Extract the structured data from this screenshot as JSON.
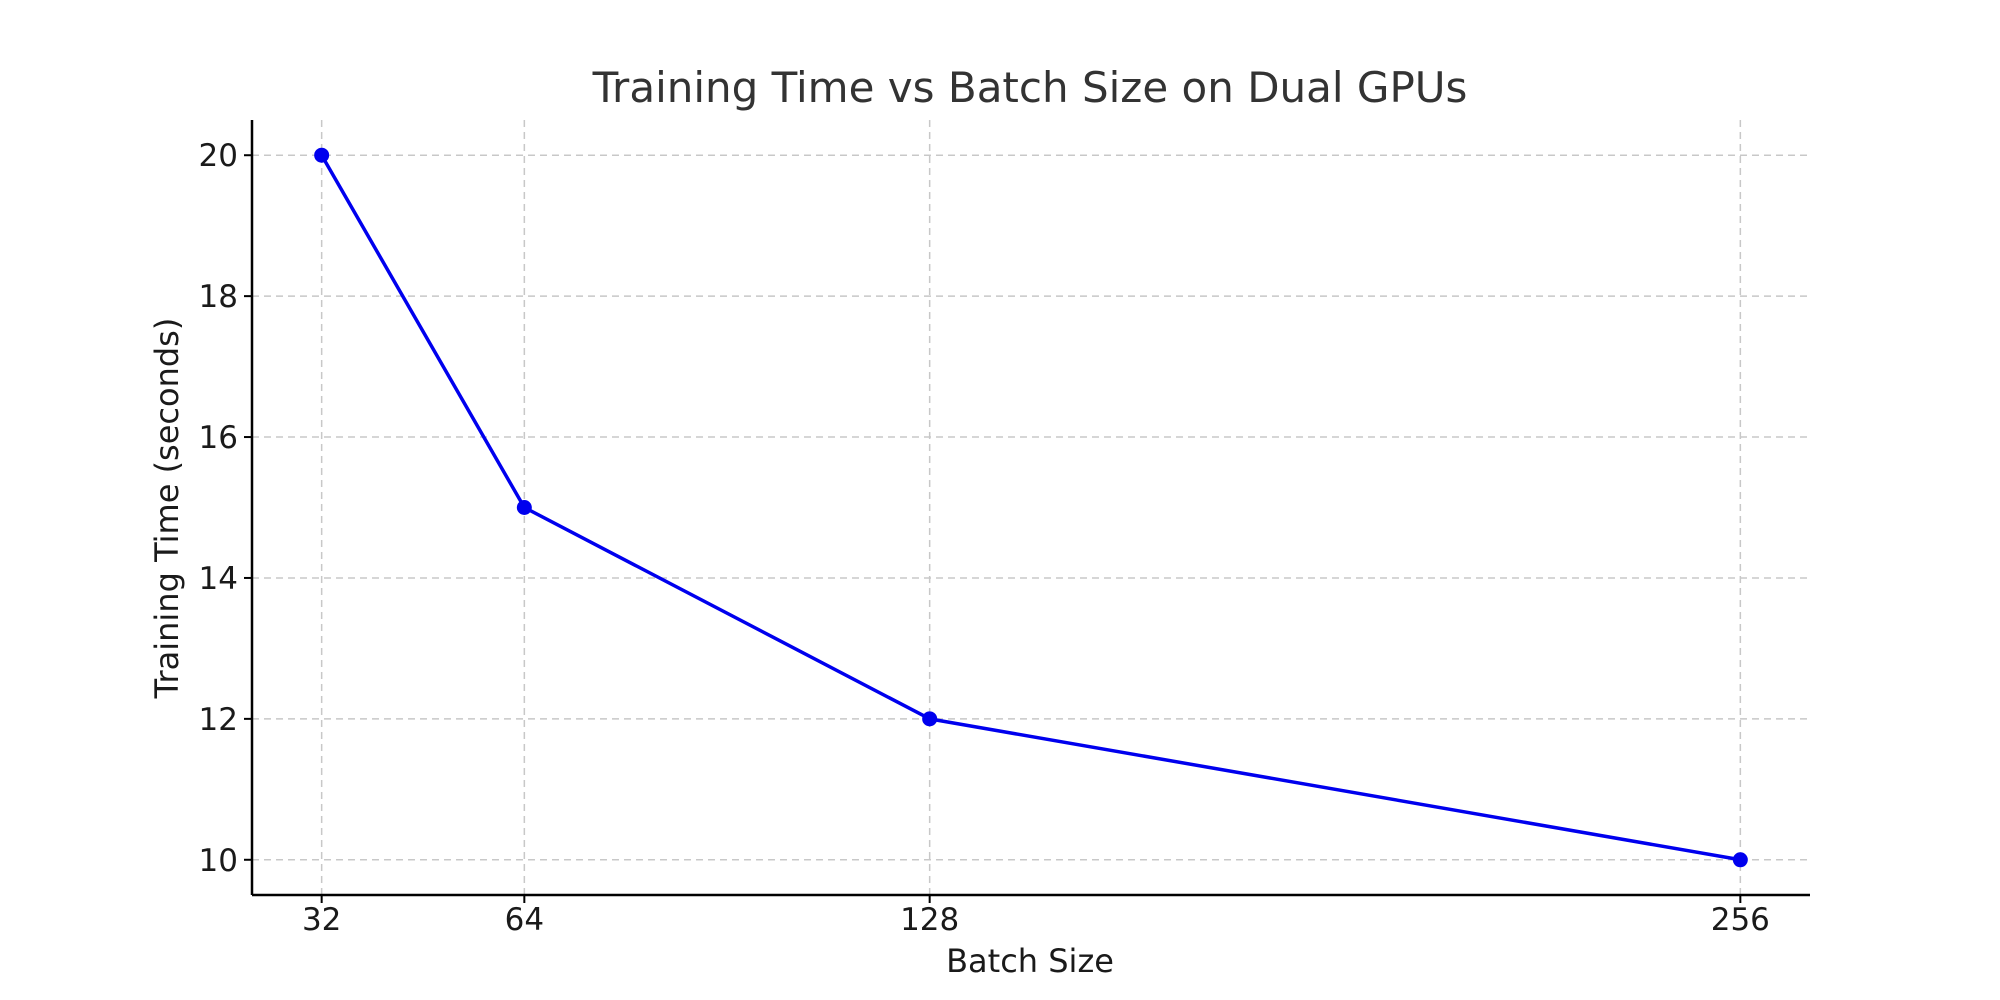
{
  "chart_data": {
    "type": "line",
    "title": "Training Time vs Batch Size on Dual GPUs",
    "xlabel": "Batch Size",
    "ylabel": "Training Time (seconds)",
    "x": [
      32,
      64,
      128,
      256
    ],
    "x_tick_labels": [
      "32",
      "64",
      "128",
      "256"
    ],
    "y_ticks": [
      10,
      12,
      14,
      16,
      18,
      20
    ],
    "y_tick_labels": [
      "10",
      "12",
      "14",
      "16",
      "18",
      "20"
    ],
    "xlim": [
      21,
      267
    ],
    "ylim": [
      9.5,
      20.5
    ],
    "grid": true,
    "series": [
      {
        "values": [
          20,
          15,
          12,
          10
        ],
        "color": "#0000ee",
        "marker": "circle"
      }
    ]
  }
}
